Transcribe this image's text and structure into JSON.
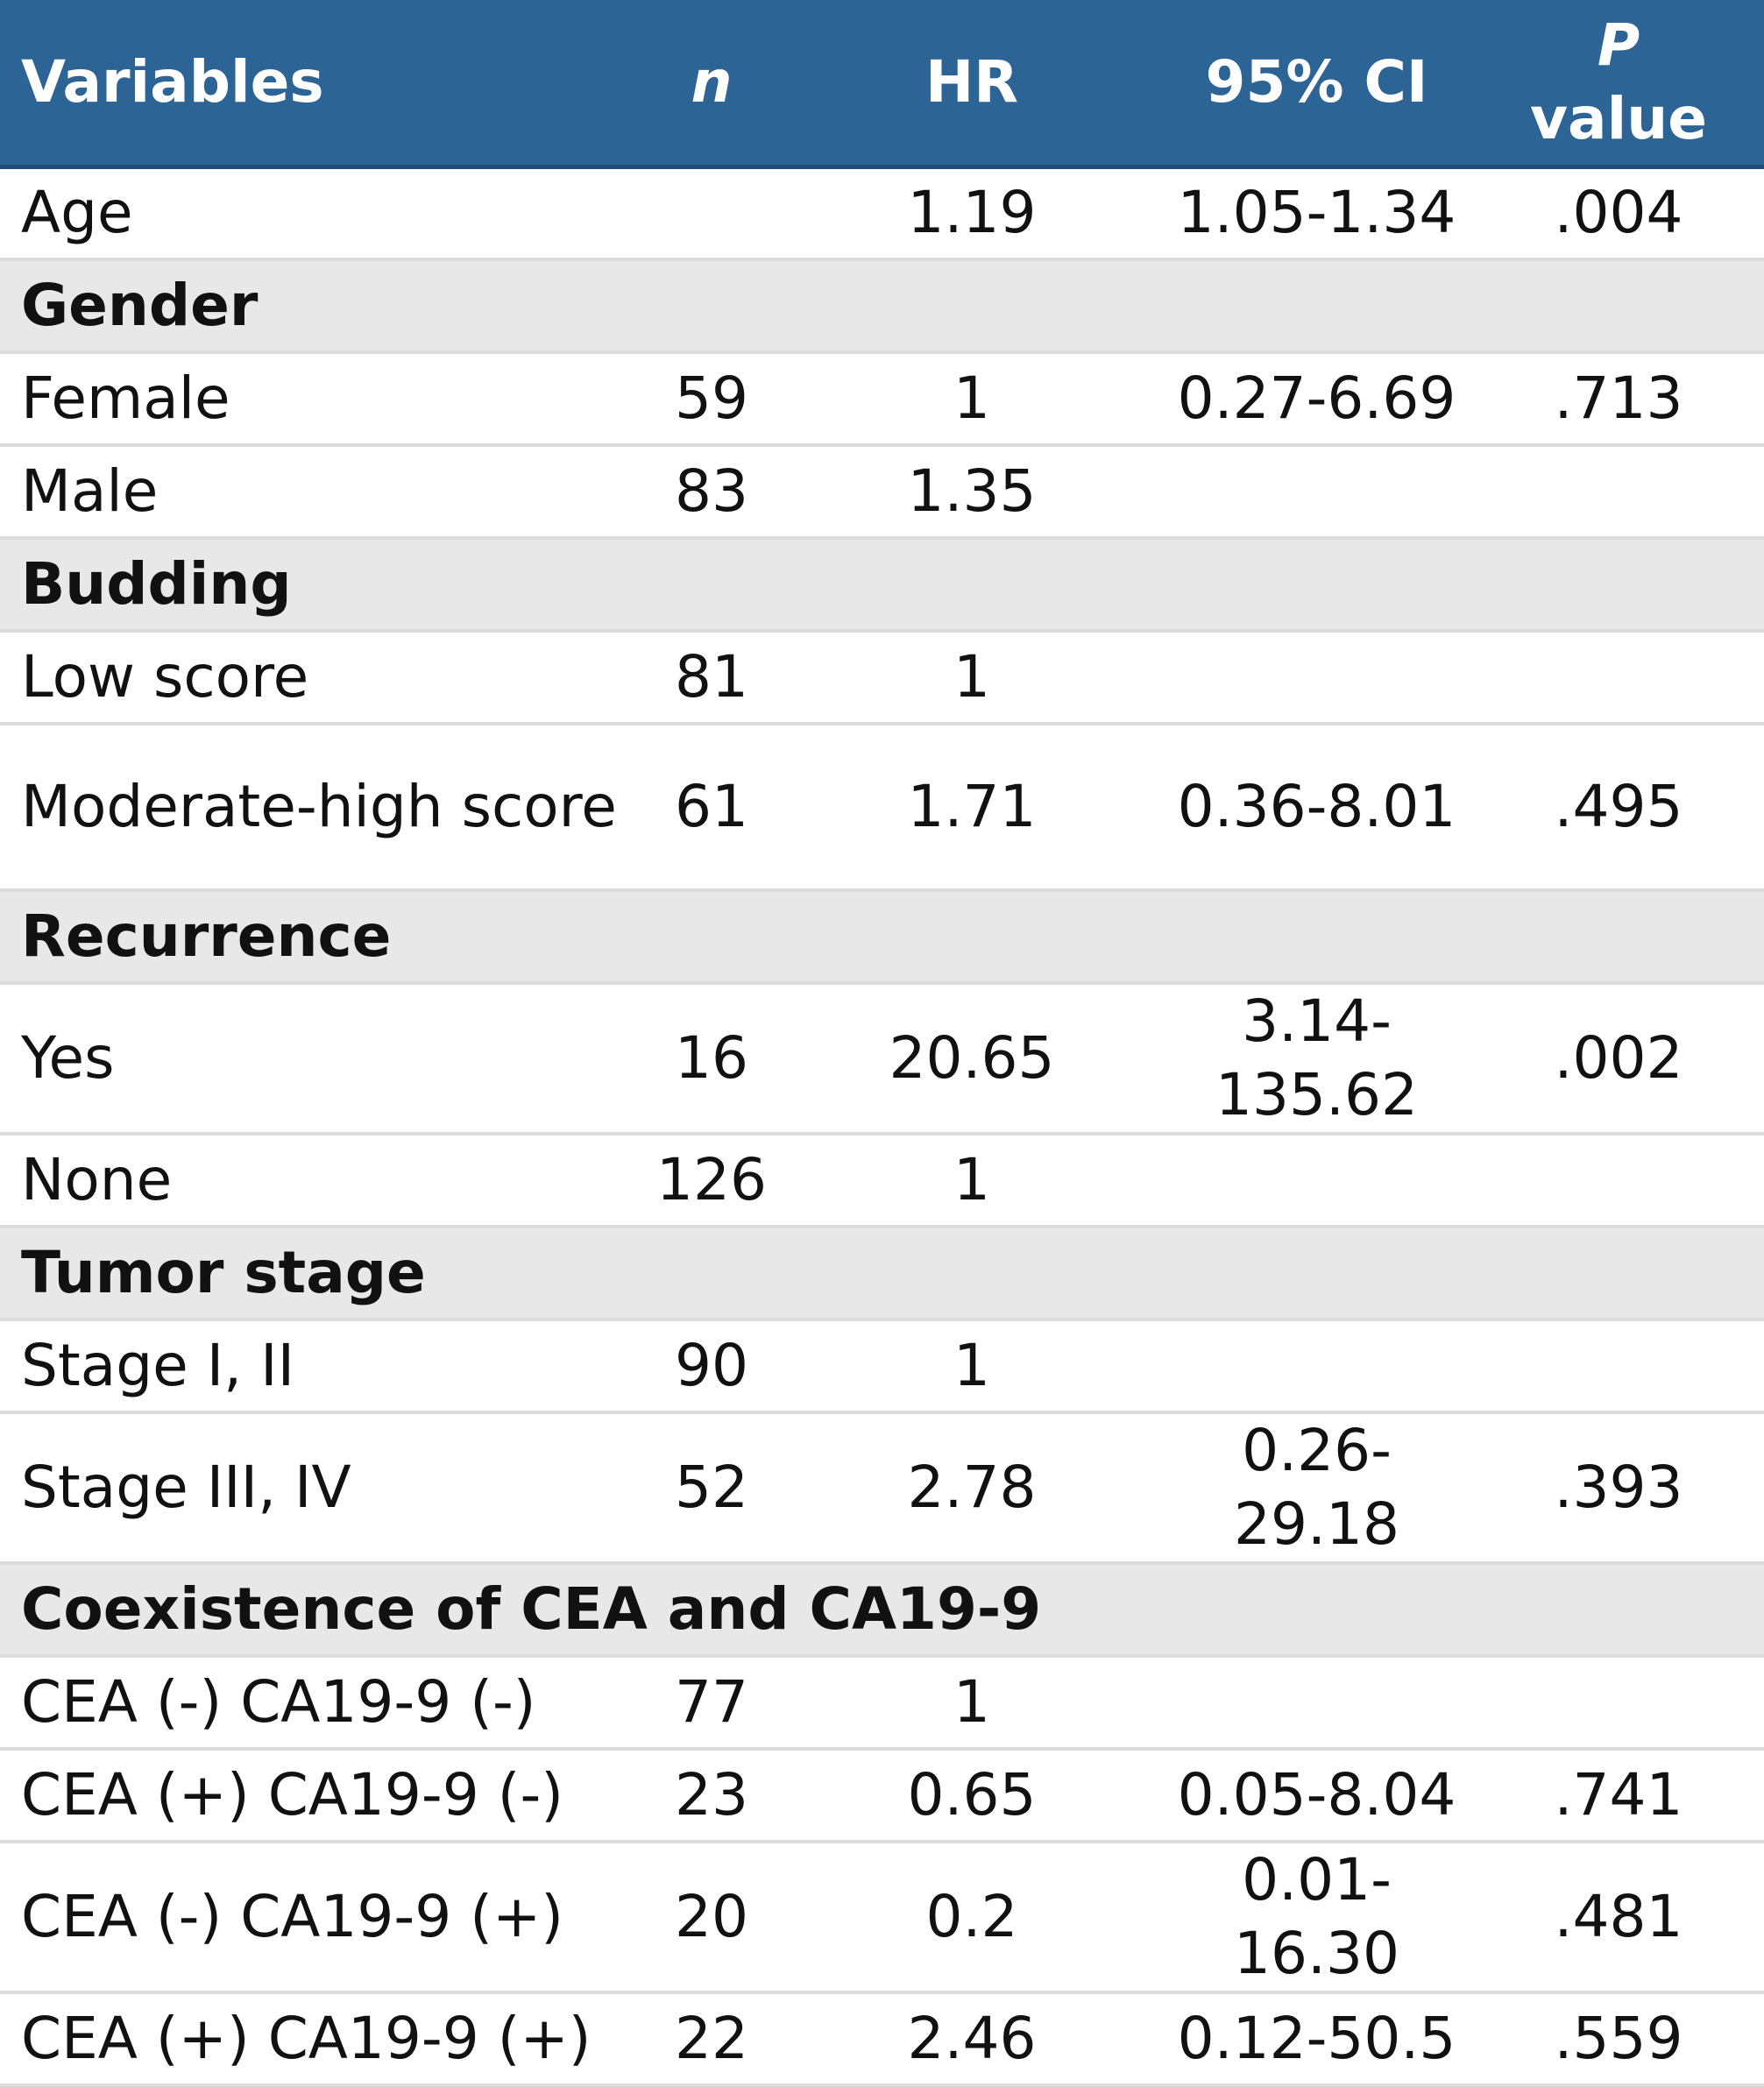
{
  "header": {
    "variables": "Variables",
    "n": "n",
    "hr": "HR",
    "ci": "95% CI",
    "p_italic": "P",
    "p_rest": "value"
  },
  "rows": [
    {
      "label": "Age",
      "n": "",
      "hr": "1.19",
      "ci": "1.05-1.34",
      "p": ".004"
    },
    {
      "label": "Gender"
    },
    {
      "label": "Female",
      "n": "59",
      "hr": "1",
      "ci": "0.27-6.69",
      "p": ".713"
    },
    {
      "label": "Male",
      "n": "83",
      "hr": "1.35",
      "ci": "",
      "p": ""
    },
    {
      "label": "Budding"
    },
    {
      "label": "Low score",
      "n": "81",
      "hr": "1",
      "ci": "",
      "p": ""
    },
    {
      "label": "Moderate-high score",
      "n": "61",
      "hr": "1.71",
      "ci": "0.36-8.01",
      "p": ".495"
    },
    {
      "label": "Recurrence"
    },
    {
      "label": "Yes",
      "n": "16",
      "hr": "20.65",
      "ci": "3.14-135.62",
      "p": ".002"
    },
    {
      "label": "None",
      "n": "126",
      "hr": "1",
      "ci": "",
      "p": ""
    },
    {
      "label": "Tumor stage"
    },
    {
      "label": "Stage I, II",
      "n": "90",
      "hr": "1",
      "ci": "",
      "p": ""
    },
    {
      "label": "Stage III, IV",
      "n": "52",
      "hr": "2.78",
      "ci": "0.26-29.18",
      "p": ".393"
    },
    {
      "label": "Coexistence of CEA and CA19-9"
    },
    {
      "label": "CEA (-) CA19-9 (-)",
      "n": "77",
      "hr": "1",
      "ci": "",
      "p": ""
    },
    {
      "label": "CEA (+) CA19-9 (-)",
      "n": "23",
      "hr": "0.65",
      "ci": "0.05-8.04",
      "p": ".741"
    },
    {
      "label": "CEA (-) CA19-9 (+)",
      "n": "20",
      "hr": "0.2",
      "ci": "0.01-16.30",
      "p": ".481"
    },
    {
      "label": "CEA (+) CA19-9 (+)",
      "n": "22",
      "hr": "2.46",
      "ci": "0.12-50.5",
      "p": ".559"
    }
  ]
}
